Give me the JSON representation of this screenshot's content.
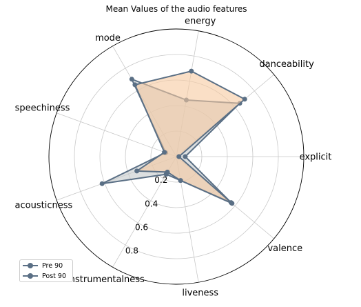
{
  "chart_data": {
    "type": "radar",
    "title": "Mean Values of the audio features",
    "axes": [
      "explicit",
      "danceability",
      "energy",
      "mode",
      "speechiness",
      "acousticness",
      "instrumentalness",
      "liveness",
      "valence"
    ],
    "radial_ticks": [
      "0.2",
      "0.4",
      "0.6",
      "0.8"
    ],
    "rlim": [
      0,
      1
    ],
    "grid": true,
    "legend_position": "lower-left",
    "series": [
      {
        "name": "Pre 90",
        "values": [
          0.07,
          0.65,
          0.45,
          0.7,
          0.09,
          0.62,
          0.16,
          0.19,
          0.56
        ],
        "line_color": "#5a6f85",
        "fill_color": "#c5c9cc"
      },
      {
        "name": "Post 90",
        "values": [
          0.02,
          0.7,
          0.68,
          0.65,
          0.1,
          0.33,
          0.14,
          0.19,
          0.57
        ],
        "line_color": "#5a6f85",
        "fill_color": "#f7c9a0"
      }
    ]
  }
}
